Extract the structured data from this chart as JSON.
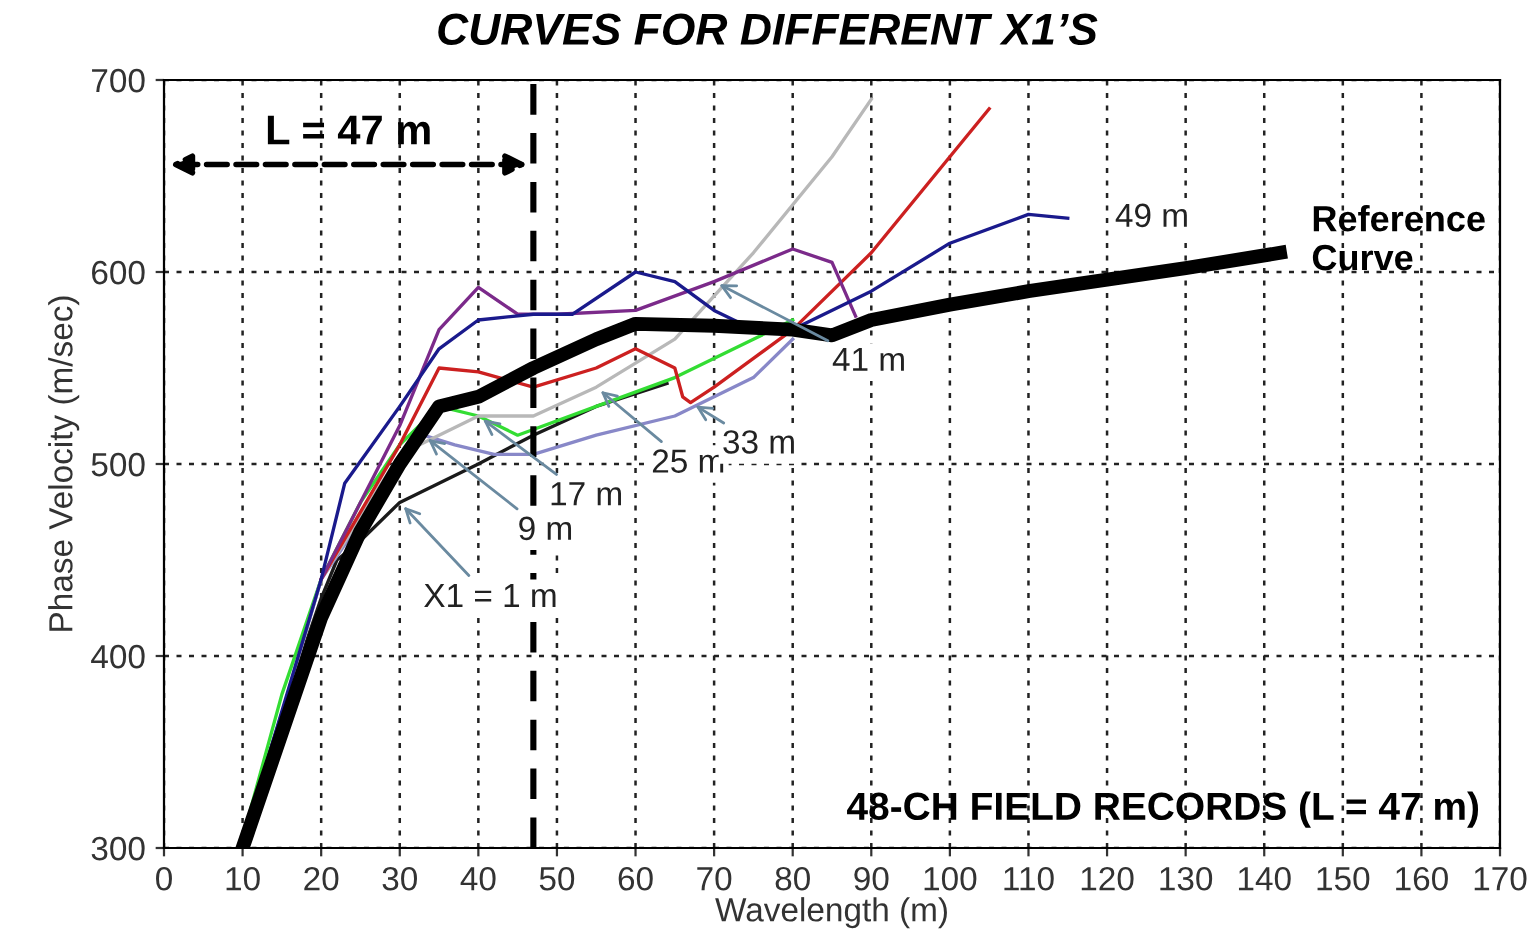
{
  "chart_data": {
    "type": "line",
    "title": "CURVES FOR DIFFERENT X1’S",
    "xlabel": "Wavelength (m)",
    "ylabel": "Phase Velocity (m/sec)",
    "xlim": [
      0,
      170
    ],
    "xticks": [
      0,
      10,
      20,
      30,
      40,
      50,
      60,
      70,
      80,
      90,
      100,
      110,
      120,
      130,
      140,
      150,
      160,
      170
    ],
    "ylim": [
      300,
      700
    ],
    "yticks": [
      300,
      400,
      500,
      600,
      700
    ],
    "grid": true,
    "marker": "none",
    "line_style": "solid",
    "series": [
      {
        "color": "#000000",
        "x": [
          10,
          15,
          20,
          25,
          30,
          35,
          40,
          47,
          55,
          60,
          70,
          80,
          85,
          90,
          100,
          110,
          120,
          130,
          142
        ],
        "values": [
          300,
          360,
          420,
          465,
          500,
          530,
          535,
          550,
          565,
          573,
          572,
          570,
          567,
          575,
          583,
          590,
          596,
          602,
          610
        ]
      },
      {
        "color": "#1a1a1a",
        "x": [
          10,
          15,
          20,
          22,
          25,
          30,
          35,
          40,
          47,
          55,
          64
        ],
        "values": [
          305,
          370,
          430,
          450,
          460,
          480,
          490,
          500,
          515,
          530,
          542
        ]
      },
      {
        "color": "#8888c8",
        "x": [
          10,
          15,
          20,
          25,
          30,
          33,
          37,
          42,
          47,
          55,
          65,
          75,
          80
        ],
        "values": [
          300,
          370,
          440,
          470,
          500,
          515,
          510,
          505,
          505,
          515,
          525,
          545,
          565
        ]
      },
      {
        "color": "#33dd33",
        "x": [
          11,
          15,
          20,
          25,
          30,
          35,
          40,
          45,
          47,
          55,
          65,
          75,
          80
        ],
        "values": [
          320,
          380,
          440,
          480,
          510,
          530,
          525,
          515,
          518,
          530,
          545,
          565,
          575
        ]
      },
      {
        "color": "#b8b8b8",
        "x": [
          10,
          15,
          20,
          30,
          40,
          47,
          55,
          65,
          75,
          85,
          90
        ],
        "values": [
          300,
          370,
          440,
          505,
          525,
          525,
          540,
          565,
          610,
          660,
          690
        ]
      },
      {
        "color": "#cc2020",
        "x": [
          20,
          30,
          35,
          40,
          47,
          55,
          60,
          65,
          66,
          67,
          70,
          75,
          80,
          90,
          100,
          105
        ],
        "values": [
          440,
          510,
          550,
          548,
          540,
          550,
          560,
          550,
          535,
          532,
          540,
          555,
          570,
          610,
          660,
          685
        ]
      },
      {
        "color": "#7b2a8a",
        "x": [
          20,
          30,
          35,
          40,
          45,
          50,
          60,
          70,
          80,
          85,
          88
        ],
        "values": [
          440,
          520,
          570,
          592,
          578,
          578,
          580,
          595,
          612,
          605,
          577
        ]
      },
      {
        "color": "#1a1a8c",
        "x": [
          12,
          20,
          23,
          30,
          35,
          40,
          47,
          52,
          60,
          65,
          70,
          75,
          80,
          90,
          100,
          110,
          115
        ],
        "values": [
          330,
          440,
          490,
          530,
          560,
          575,
          578,
          578,
          600,
          595,
          580,
          570,
          570,
          590,
          615,
          630,
          628
        ]
      }
    ],
    "ref_lines": [
      {
        "axis": "x",
        "value": 47,
        "label": "L = 47 m",
        "line_style": "dashed",
        "color": "#000000"
      }
    ],
    "annotations": [
      {
        "text": "X1 = 1 m",
        "x": 30,
        "y": 480
      },
      {
        "text": "9 m",
        "x": 33,
        "y": 515
      },
      {
        "text": "17 m",
        "x": 40,
        "y": 525
      },
      {
        "text": "25 m",
        "x": 55,
        "y": 540
      },
      {
        "text": "33 m",
        "x": 67,
        "y": 532
      },
      {
        "text": "41 m",
        "x": 70,
        "y": 595
      },
      {
        "text": "49 m",
        "x": 115,
        "y": 628
      },
      {
        "text": "Reference Curve",
        "x": 142,
        "y": 610
      },
      "48-CH FIELD RECORDS (L = 47 m)"
    ]
  }
}
